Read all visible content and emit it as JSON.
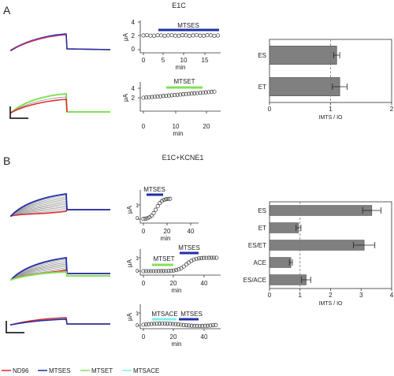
{
  "panelA": {
    "letter": "A",
    "title": "E1C",
    "timecourse1": {
      "ylabel": "μA",
      "yticks": [
        "0",
        "2",
        "4"
      ],
      "xticks": [
        "0",
        "5",
        "10",
        "15"
      ],
      "xlabel": "min",
      "bar_label": "MTSES",
      "bar_color": "#1f2fa8"
    },
    "timecourse2": {
      "ylabel": "μA",
      "yticks": [
        "2",
        "4"
      ],
      "xticks": [
        "0",
        "10",
        "20"
      ],
      "xlabel": "min",
      "bar_label": "MTSET",
      "bar_color": "#84e05a"
    }
  },
  "panelB": {
    "letter": "B",
    "title": "E1C+KCNE1",
    "timecourse1": {
      "ylabel": "μA",
      "yticks": [
        "0",
        "1"
      ],
      "xticks": [
        "0",
        "20",
        "40"
      ],
      "xlabel": "min",
      "bar_label": "MTSES",
      "bar_color": "#1f2fa8"
    },
    "timecourse2": {
      "ylabel": "μA",
      "yticks": [
        "0",
        "1"
      ],
      "xticks": [
        "0",
        "20",
        "40"
      ],
      "xlabel": "min",
      "bar_label_a": "MTSET",
      "bar_color_a": "#84e05a",
      "bar_label_b": "MTSES",
      "bar_color_b": "#1f2fa8"
    },
    "timecourse3": {
      "ylabel": "μA",
      "yticks": [
        "0",
        "1"
      ],
      "xticks": [
        "0",
        "20",
        "40"
      ],
      "xlabel": "min",
      "bar_label_a": "MTSACE",
      "bar_color_a": "#7ef0f0",
      "bar_label_b": "MTSES",
      "bar_color_b": "#1f2fa8"
    }
  },
  "legend": [
    {
      "label": "ND96",
      "color": "#e0262b"
    },
    {
      "label": "MTSES",
      "color": "#1f2fa8"
    },
    {
      "label": "MTSET",
      "color": "#84e05a"
    },
    {
      "label": "MTSACE",
      "color": "#7ef0f0"
    }
  ],
  "chart_data": [
    {
      "type": "bar",
      "orientation": "horizontal",
      "panel": "A",
      "categories": [
        "ES",
        "ET"
      ],
      "values": [
        1.1,
        1.15
      ],
      "errors": [
        0.05,
        0.12
      ],
      "xlabel": "IMTS / IO",
      "xticks": [
        "0",
        "1",
        "2"
      ],
      "xlim": [
        0,
        2
      ],
      "reference_line": 1,
      "bar_color": "#808080"
    },
    {
      "type": "bar",
      "orientation": "horizontal",
      "panel": "B",
      "categories": [
        "ES",
        "ET",
        "ES/ET",
        "ACE",
        "ES/ACE"
      ],
      "values": [
        3.35,
        0.95,
        3.1,
        0.7,
        1.2
      ],
      "errors": [
        0.3,
        0.08,
        0.35,
        0.05,
        0.15
      ],
      "xlabel": "IMTS / IO",
      "xticks": [
        "0",
        "1",
        "2",
        "3",
        "4"
      ],
      "xlim": [
        0,
        4
      ],
      "reference_line": 1,
      "bar_color": "#808080"
    }
  ]
}
